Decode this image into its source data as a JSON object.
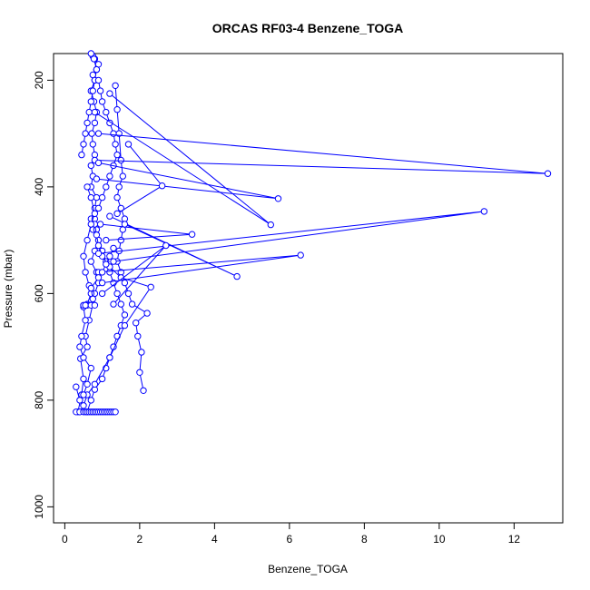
{
  "chart_data": {
    "type": "line",
    "title": "ORCAS RF03-4 Benzene_TOGA",
    "xlabel": "Benzene_TOGA",
    "ylabel": "Pressure (mbar)",
    "xlim": [
      -0.3,
      13.3
    ],
    "ylim": [
      1030,
      150
    ],
    "y_reversed": true,
    "x_ticks": [
      0,
      2,
      4,
      6,
      8,
      10,
      12
    ],
    "y_ticks": [
      200,
      400,
      600,
      800,
      1000
    ],
    "grid": false,
    "legend": "none",
    "marker": "open-circle",
    "color": "#0000ff",
    "series": [
      {
        "x": [
          0.35,
          0.45,
          0.5,
          0.42,
          0.6,
          0.55,
          0.65,
          0.75,
          0.8,
          0.9,
          0.85,
          0.7,
          0.8,
          0.9,
          0.75,
          0.7,
          0.8,
          0.85,
          0.7,
          0.75,
          0.7,
          0.8,
          0.75,
          0.72,
          0.8,
          0.85,
          0.78,
          0.7,
          0.8,
          0.75,
          0.85,
          0.9,
          0.8,
          0.75,
          0.7,
          0.78,
          0.85,
          0.8,
          0.75,
          0.7,
          0.65,
          0.6,
          0.55,
          0.5,
          0.45
        ],
        "y": [
          822,
          790,
          760,
          722,
          700,
          680,
          650,
          620,
          600,
          580,
          560,
          540,
          520,
          500,
          480,
          460,
          440,
          420,
          400,
          380,
          360,
          340,
          320,
          300,
          280,
          260,
          240,
          220,
          200,
          190,
          180,
          170,
          160,
          155,
          150,
          160,
          180,
          200,
          220,
          240,
          260,
          280,
          300,
          320,
          340
        ]
      },
      {
        "x": [
          0.6,
          0.7,
          0.8,
          1.0,
          1.1,
          1.2,
          1.3,
          1.4,
          1.5,
          1.6,
          1.5,
          1.4,
          1.3,
          1.2,
          1.1,
          1.0,
          0.9,
          0.85,
          0.8,
          0.9,
          1.0,
          1.1,
          1.2,
          1.3,
          1.4,
          1.35,
          1.3,
          1.2,
          1.1,
          1.0,
          0.95,
          0.9
        ],
        "y": [
          822,
          800,
          780,
          760,
          740,
          720,
          700,
          680,
          660,
          640,
          620,
          600,
          580,
          560,
          540,
          520,
          500,
          480,
          460,
          440,
          420,
          400,
          380,
          360,
          340,
          320,
          300,
          280,
          260,
          240,
          220,
          200
        ]
      },
      {
        "x": [
          2.1,
          2.0,
          2.05,
          1.95,
          1.9,
          2.2,
          1.8,
          1.7,
          1.6,
          1.5,
          1.4,
          1.45,
          1.5,
          1.55,
          1.6,
          1.5,
          1.4,
          1.45,
          1.55,
          1.5,
          1.45,
          1.4,
          1.35
        ],
        "y": [
          782,
          748,
          710,
          680,
          655,
          637,
          620,
          600,
          580,
          560,
          540,
          520,
          500,
          480,
          460,
          440,
          420,
          400,
          380,
          350,
          300,
          255,
          210
        ]
      },
      {
        "x": [
          0.4,
          0.5,
          0.6,
          0.8,
          1.2,
          1.6,
          2.3,
          1.5,
          1.2,
          1.0,
          0.9,
          0.85,
          0.8
        ],
        "y": [
          822,
          810,
          790,
          770,
          720,
          660,
          588,
          570,
          550,
          530,
          510,
          490,
          470
        ]
      },
      {
        "x": [
          0.9,
          12.9,
          0.8
        ],
        "y": [
          300,
          375,
          350
        ]
      },
      {
        "x": [
          0.9,
          5.7,
          0.85
        ],
        "y": [
          355,
          422,
          385
        ]
      },
      {
        "x": [
          1.2,
          5.5,
          0.8
        ],
        "y": [
          225,
          471,
          260
        ]
      },
      {
        "x": [
          1.3,
          11.2,
          0.9
        ],
        "y": [
          540,
          446,
          525
        ]
      },
      {
        "x": [
          1.0,
          6.3,
          0.9
        ],
        "y": [
          580,
          528,
          560
        ]
      },
      {
        "x": [
          1.1,
          3.4,
          0.95
        ],
        "y": [
          500,
          489,
          470
        ]
      },
      {
        "x": [
          1.6,
          4.6,
          1.2
        ],
        "y": [
          470,
          568,
          455
        ]
      },
      {
        "x": [
          1.0,
          2.7,
          1.3
        ],
        "y": [
          600,
          510,
          620
        ]
      },
      {
        "x": [
          1.7,
          2.6,
          1.4
        ],
        "y": [
          320,
          398,
          450
        ]
      },
      {
        "x": [
          0.3,
          0.4,
          0.5,
          0.55,
          0.6,
          0.65,
          0.7,
          0.75,
          0.8,
          0.85,
          0.9,
          0.95,
          1.0,
          1.05,
          1.1,
          1.15,
          1.2,
          1.25,
          1.3,
          1.35
        ],
        "y": [
          822,
          822,
          822,
          822,
          822,
          822,
          822,
          822,
          822,
          822,
          822,
          822,
          822,
          822,
          822,
          822,
          822,
          822,
          822,
          822
        ]
      },
      {
        "x": [
          0.3,
          0.4,
          0.5,
          0.6,
          0.7,
          0.5,
          0.4,
          0.45,
          0.55,
          0.5,
          0.6,
          0.7,
          0.65,
          0.55,
          0.5,
          0.6,
          0.7,
          0.8,
          0.7,
          0.6
        ],
        "y": [
          775,
          800,
          790,
          770,
          740,
          720,
          700,
          680,
          650,
          625,
          620,
          600,
          585,
          560,
          530,
          500,
          470,
          450,
          420,
          400
        ]
      },
      {
        "x": [
          0.5,
          0.6,
          0.55,
          0.7,
          0.8,
          0.75,
          0.7,
          0.9,
          1.0,
          1.1,
          1.2,
          1.3
        ],
        "y": [
          622,
          622,
          622,
          622,
          622,
          610,
          590,
          570,
          560,
          545,
          530,
          515
        ]
      }
    ]
  }
}
